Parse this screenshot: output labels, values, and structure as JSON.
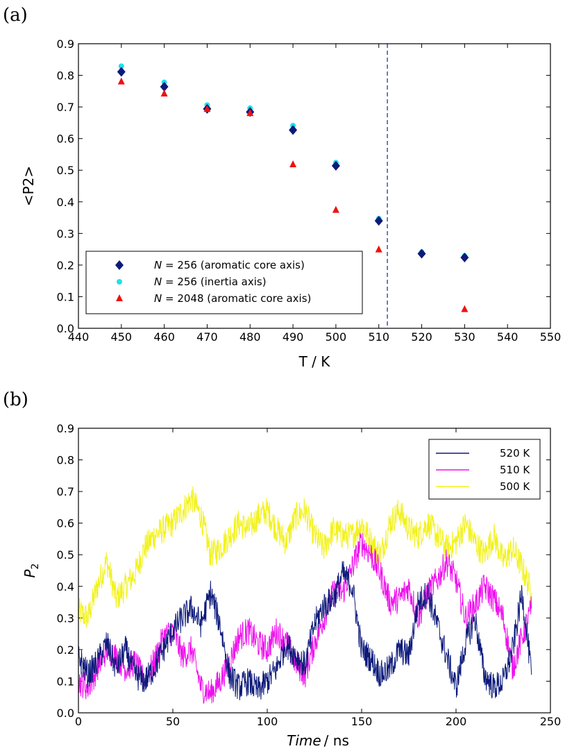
{
  "panels": [
    {
      "label": "(a)"
    },
    {
      "label": "(b)"
    }
  ],
  "chart_data": [
    {
      "type": "scatter",
      "xlabel": "T / K",
      "ylabel": "<P2>",
      "xlim": [
        440,
        550
      ],
      "ylim": [
        0.0,
        0.9
      ],
      "xticks": [
        440,
        450,
        460,
        470,
        480,
        490,
        500,
        510,
        520,
        530,
        540,
        550
      ],
      "yticks": [
        0.0,
        0.1,
        0.2,
        0.3,
        0.4,
        0.5,
        0.6,
        0.7,
        0.8,
        0.9
      ],
      "legend_position": "lower-left",
      "vline": {
        "x": 512,
        "style": "dashed",
        "color": "#3355aa"
      },
      "series": [
        {
          "name_italic": "N",
          "name_rest": " = 256 (aromatic core axis)",
          "marker": "diamond",
          "color": "#0d1a7a",
          "x": [
            450,
            460,
            470,
            480,
            490,
            500,
            510,
            520,
            530
          ],
          "y": [
            0.811,
            0.764,
            0.694,
            0.684,
            0.627,
            0.514,
            0.34,
            0.236,
            0.224
          ]
        },
        {
          "name_italic": "N",
          "name_rest": " = 256 (inertia axis)",
          "marker": "circle",
          "color": "#22e0e8",
          "x": [
            450,
            460,
            470,
            480,
            490,
            500,
            510,
            520,
            530
          ],
          "y": [
            0.829,
            0.778,
            0.706,
            0.696,
            0.641,
            0.524,
            0.347,
            0.241,
            0.229
          ]
        },
        {
          "name_italic": "N",
          "name_rest": " = 2048 (aromatic core axis)",
          "marker": "triangle",
          "color": "#ee1111",
          "x": [
            450,
            460,
            470,
            480,
            490,
            500,
            510,
            530
          ],
          "y": [
            0.78,
            0.742,
            0.693,
            0.68,
            0.518,
            0.374,
            0.249,
            0.06
          ]
        }
      ]
    },
    {
      "type": "line",
      "xlabel_italic": "Time",
      "xlabel_rest": "/ ns",
      "ylabel_main": "P",
      "ylabel_sub": "2",
      "xlim": [
        0,
        250
      ],
      "ylim": [
        0.0,
        0.9
      ],
      "xticks": [
        0,
        50,
        100,
        150,
        200,
        250
      ],
      "yticks": [
        0.0,
        0.1,
        0.2,
        0.3,
        0.4,
        0.5,
        0.6,
        0.7,
        0.8,
        0.9
      ],
      "legend_position": "top-right",
      "series": [
        {
          "name": "520 K",
          "color": "#0d1a7a",
          "x": [
            0,
            5,
            10,
            15,
            20,
            25,
            30,
            35,
            40,
            45,
            50,
            55,
            60,
            65,
            70,
            75,
            80,
            85,
            90,
            95,
            100,
            105,
            110,
            115,
            120,
            125,
            130,
            135,
            140,
            145,
            150,
            155,
            160,
            165,
            170,
            175,
            180,
            185,
            190,
            195,
            200,
            205,
            210,
            215,
            220,
            225,
            230,
            235,
            240
          ],
          "y": [
            0.18,
            0.12,
            0.16,
            0.22,
            0.14,
            0.2,
            0.12,
            0.1,
            0.14,
            0.2,
            0.26,
            0.3,
            0.33,
            0.28,
            0.38,
            0.28,
            0.12,
            0.08,
            0.1,
            0.07,
            0.1,
            0.14,
            0.22,
            0.18,
            0.15,
            0.28,
            0.34,
            0.36,
            0.44,
            0.4,
            0.2,
            0.17,
            0.12,
            0.14,
            0.2,
            0.18,
            0.35,
            0.38,
            0.28,
            0.18,
            0.08,
            0.22,
            0.3,
            0.12,
            0.08,
            0.1,
            0.2,
            0.38,
            0.12
          ]
        },
        {
          "name": "510 K",
          "color": "#ee11ee",
          "x": [
            0,
            5,
            10,
            15,
            20,
            25,
            30,
            35,
            40,
            45,
            50,
            55,
            60,
            65,
            70,
            75,
            80,
            85,
            90,
            95,
            100,
            105,
            110,
            115,
            120,
            125,
            130,
            135,
            140,
            145,
            150,
            155,
            160,
            165,
            170,
            175,
            180,
            185,
            190,
            195,
            200,
            205,
            210,
            215,
            220,
            225,
            230,
            235,
            240
          ],
          "y": [
            0.1,
            0.08,
            0.14,
            0.2,
            0.18,
            0.14,
            0.16,
            0.1,
            0.16,
            0.24,
            0.26,
            0.18,
            0.2,
            0.08,
            0.06,
            0.1,
            0.16,
            0.24,
            0.26,
            0.22,
            0.2,
            0.26,
            0.22,
            0.16,
            0.12,
            0.22,
            0.3,
            0.38,
            0.38,
            0.46,
            0.54,
            0.5,
            0.44,
            0.35,
            0.36,
            0.4,
            0.3,
            0.38,
            0.42,
            0.48,
            0.42,
            0.3,
            0.34,
            0.4,
            0.36,
            0.3,
            0.14,
            0.24,
            0.33
          ]
        },
        {
          "name": "500 K",
          "color": "#f2f21a",
          "x": [
            0,
            5,
            10,
            15,
            20,
            25,
            30,
            35,
            40,
            45,
            50,
            55,
            60,
            65,
            70,
            75,
            80,
            85,
            90,
            95,
            100,
            105,
            110,
            115,
            120,
            125,
            130,
            135,
            140,
            145,
            150,
            155,
            160,
            165,
            170,
            175,
            180,
            185,
            190,
            195,
            200,
            205,
            210,
            215,
            220,
            225,
            230,
            235,
            240
          ],
          "y": [
            0.32,
            0.3,
            0.4,
            0.48,
            0.36,
            0.4,
            0.44,
            0.52,
            0.56,
            0.58,
            0.6,
            0.64,
            0.68,
            0.62,
            0.5,
            0.52,
            0.56,
            0.6,
            0.58,
            0.62,
            0.64,
            0.58,
            0.54,
            0.62,
            0.64,
            0.56,
            0.52,
            0.58,
            0.56,
            0.56,
            0.6,
            0.54,
            0.5,
            0.6,
            0.64,
            0.58,
            0.56,
            0.6,
            0.56,
            0.52,
            0.54,
            0.6,
            0.54,
            0.5,
            0.56,
            0.48,
            0.52,
            0.46,
            0.38
          ]
        }
      ]
    }
  ]
}
